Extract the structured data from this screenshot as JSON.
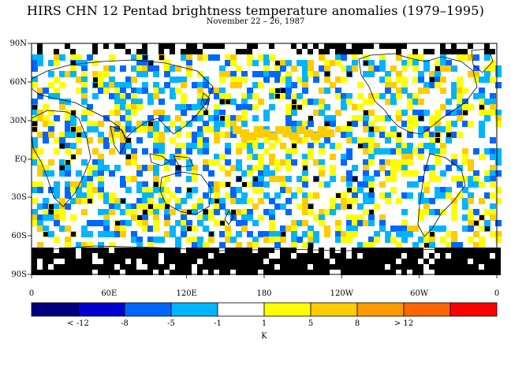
{
  "title": "HIRS CHN 12 Pentad brightness temperature anomalies (1979–1995)",
  "subtitle": "November 22 – 26, 1987",
  "lat_labels": [
    "90N",
    "60N",
    "30N",
    "EQ",
    "30S",
    "60S",
    "90S"
  ],
  "lon_labels": [
    "0",
    "60E",
    "120E",
    "180",
    "120W",
    "60W",
    "0"
  ],
  "colorbar": {
    "colors": [
      "#00007f",
      "#0000d0",
      "#0066ff",
      "#00b4ff",
      "#ffffff",
      "#ffff00",
      "#ffcc00",
      "#ff9900",
      "#ff6600",
      "#ff0000"
    ],
    "tick_labels": [
      "< -12",
      "-8",
      "-5",
      "-1",
      "1",
      "5",
      "8",
      "> 12"
    ],
    "unit_label": "K"
  },
  "legend_missing_color": "#000000",
  "coastline_color": "#000000"
}
